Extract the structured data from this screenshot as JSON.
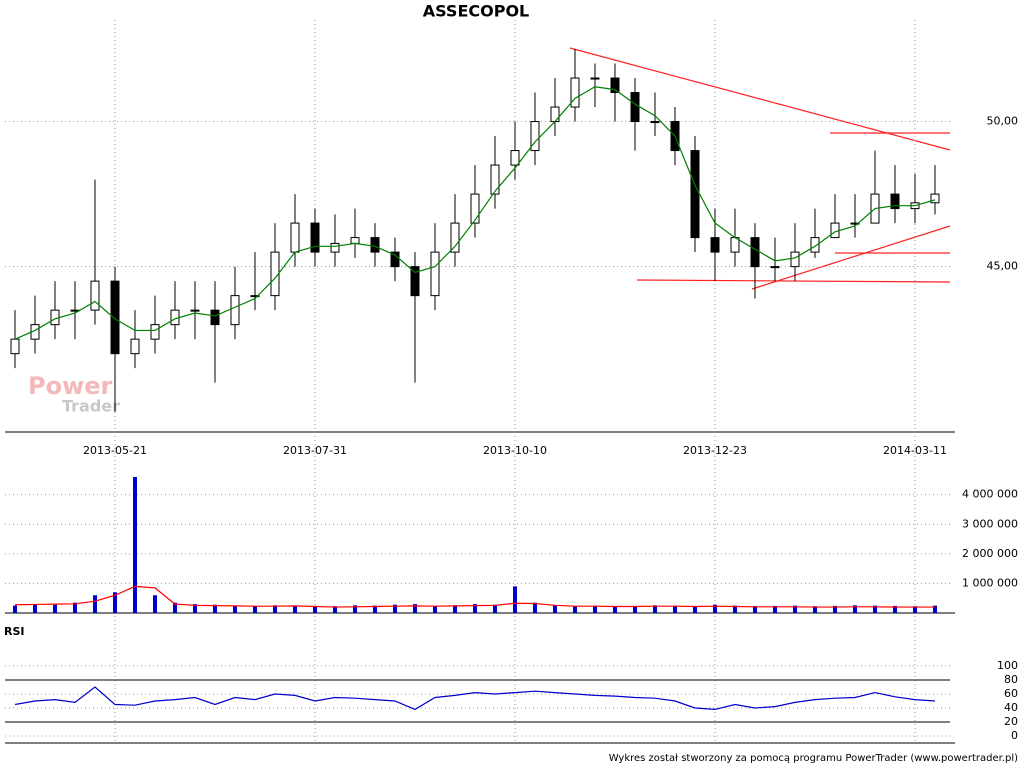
{
  "chart_data": {
    "type": "candlestick",
    "title": "ASSECOPOL",
    "watermark": [
      "Power",
      "Trader"
    ],
    "footer": "Wykres został stworzony za pomocą programu PowerTrader (www.powertrader.pl)",
    "categories": [
      null,
      null,
      null,
      null,
      null,
      "2013-05-21",
      null,
      null,
      null,
      null,
      null,
      null,
      null,
      null,
      null,
      "2013-07-31",
      null,
      null,
      null,
      null,
      null,
      null,
      null,
      null,
      null,
      "2013-10-10",
      null,
      null,
      null,
      null,
      null,
      null,
      null,
      null,
      null,
      "2013-12-23",
      null,
      null,
      null,
      null,
      null,
      null,
      null,
      null,
      null,
      "2014-03-11",
      null
    ],
    "open": [
      42,
      42.5,
      43,
      43.5,
      43.5,
      44.5,
      42,
      42.5,
      43,
      43.5,
      43.5,
      43,
      44,
      44,
      45.5,
      46.5,
      45.5,
      45.8,
      46,
      45.5,
      45,
      44,
      45.5,
      46.5,
      47.5,
      48.5,
      49,
      50,
      50.5,
      51.5,
      51.5,
      51,
      50,
      50,
      49,
      46,
      45.5,
      46,
      45,
      45,
      45.5,
      46,
      46.5,
      46.5,
      47.5,
      47,
      47.2
    ],
    "high": [
      43.5,
      44,
      44.5,
      44.5,
      48,
      45,
      43.5,
      44,
      44.5,
      44.5,
      44.5,
      45,
      45.5,
      46.5,
      47.5,
      47,
      46.8,
      47,
      46.5,
      46,
      45.5,
      46.5,
      47.5,
      48.5,
      49.5,
      50,
      51,
      51.5,
      52.5,
      52,
      52,
      51.5,
      51,
      50.5,
      49.5,
      47,
      47,
      46.5,
      46,
      46.5,
      47,
      47.5,
      47.5,
      49,
      48.5,
      48.2,
      48.5
    ],
    "low": [
      41.5,
      42,
      42.5,
      42.5,
      43,
      40,
      41.5,
      42,
      42.5,
      42.5,
      41,
      42.5,
      43.5,
      43.5,
      45,
      45,
      45,
      45.3,
      45,
      44.5,
      41,
      43.5,
      45,
      46,
      47,
      48,
      48.5,
      49.5,
      50,
      50.5,
      50,
      49,
      49.5,
      48.5,
      45.5,
      44.5,
      45,
      43.9,
      44.5,
      44.5,
      45.3,
      46,
      46,
      46.5,
      46.5,
      46.5,
      46.8
    ],
    "close": [
      42.5,
      43,
      43.5,
      43.5,
      44.5,
      42,
      42.5,
      43,
      43.5,
      43.5,
      43,
      44,
      44,
      45.5,
      46.5,
      45.5,
      45.8,
      46,
      45.5,
      45,
      44,
      45.5,
      46.5,
      47.5,
      48.5,
      49,
      50,
      50.5,
      51.5,
      51.5,
      51,
      50,
      50,
      49,
      46,
      45.5,
      46,
      45,
      45,
      45.5,
      46,
      46.5,
      46.5,
      47.5,
      47,
      47.2,
      47.5
    ],
    "moving_average": {
      "color": "#008000",
      "values": [
        42.5,
        42.8,
        43.2,
        43.4,
        43.8,
        43.2,
        42.8,
        42.8,
        43.2,
        43.4,
        43.3,
        43.6,
        43.9,
        44.6,
        45.5,
        45.7,
        45.7,
        45.8,
        45.7,
        45.4,
        44.8,
        45,
        45.7,
        46.6,
        47.6,
        48.4,
        49.3,
        50,
        50.8,
        51.2,
        51.1,
        50.6,
        50.2,
        49.5,
        47.8,
        46.5,
        46,
        45.6,
        45.2,
        45.3,
        45.7,
        46.2,
        46.4,
        47,
        47.1,
        47.1,
        47.3
      ]
    },
    "ylim": [
      39.3,
      53.5
    ],
    "yticks": [
      {
        "value": 45,
        "label": "45,00"
      },
      {
        "value": 50,
        "label": "50,00"
      }
    ],
    "volume": {
      "color": "#0000cc",
      "values": [
        250000,
        300000,
        280000,
        350000,
        600000,
        700000,
        4600000,
        600000,
        350000,
        300000,
        280000,
        250000,
        230000,
        260000,
        250000,
        240000,
        230000,
        260000,
        250000,
        280000,
        300000,
        240000,
        260000,
        300000,
        280000,
        900000,
        350000,
        260000,
        240000,
        250000,
        230000,
        240000,
        260000,
        250000,
        240000,
        280000,
        250000,
        230000,
        240000,
        250000,
        230000,
        240000,
        260000,
        250000,
        240000,
        230000,
        250000
      ],
      "ma_color": "#ff0000",
      "ma_values": [
        280000,
        290000,
        300000,
        310000,
        400000,
        600000,
        900000,
        850000,
        300000,
        260000,
        250000,
        240000,
        230000,
        230000,
        240000,
        220000,
        200000,
        210000,
        220000,
        230000,
        240000,
        230000,
        240000,
        250000,
        260000,
        330000,
        320000,
        260000,
        230000,
        230000,
        220000,
        220000,
        230000,
        230000,
        220000,
        230000,
        220000,
        210000,
        210000,
        210000,
        200000,
        200000,
        210000,
        210000,
        200000,
        200000,
        200000
      ],
      "ylim": [
        0,
        4700000
      ],
      "yticks": [
        {
          "value": 1000000,
          "label": "1 000 000"
        },
        {
          "value": 2000000,
          "label": "2 000 000"
        },
        {
          "value": 3000000,
          "label": "3 000 000"
        },
        {
          "value": 4000000,
          "label": "4 000 000"
        }
      ]
    },
    "rsi": {
      "label": "RSI",
      "color": "#0000cc",
      "values": [
        45,
        50,
        52,
        48,
        70,
        45,
        44,
        50,
        52,
        55,
        45,
        55,
        52,
        60,
        58,
        50,
        55,
        54,
        52,
        50,
        38,
        55,
        58,
        62,
        60,
        62,
        64,
        62,
        60,
        58,
        57,
        55,
        54,
        50,
        40,
        38,
        45,
        40,
        42,
        48,
        52,
        54,
        55,
        62,
        56,
        52,
        50
      ],
      "ylim": [
        0,
        100
      ],
      "yticks": [
        0,
        20,
        40,
        60,
        80,
        100
      ],
      "levels": [
        20,
        80
      ]
    }
  }
}
